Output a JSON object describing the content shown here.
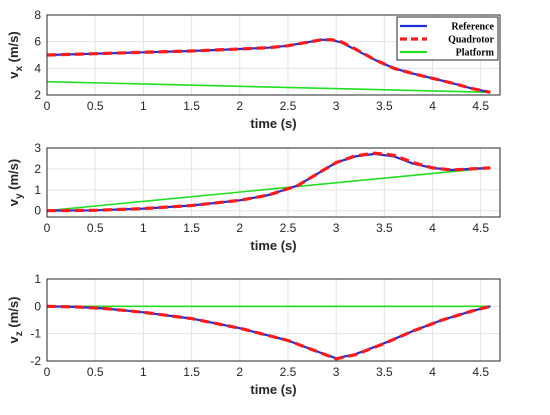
{
  "chart_data": [
    {
      "type": "line",
      "ylabel_main": "v",
      "ylabel_sub": "x",
      "ylabel_unit": "(m/s)",
      "xlabel": "time (s)",
      "xlim": [
        0,
        4.7
      ],
      "ylim": [
        2,
        8
      ],
      "xticks": [
        "0",
        "0.5",
        "1",
        "1.5",
        "2",
        "2.5",
        "3",
        "3.5",
        "4",
        "4.5"
      ],
      "yticks": [
        "2",
        "4",
        "6",
        "8"
      ],
      "grid": true,
      "legend_position": "top-right",
      "series": [
        {
          "name": "Reference",
          "color": "#1f2fd6",
          "style": "solid",
          "x": [
            0,
            0.5,
            1,
            1.5,
            2,
            2.3,
            2.5,
            2.7,
            2.85,
            2.95,
            3.05,
            3.2,
            3.4,
            3.6,
            3.8,
            4.0,
            4.2,
            4.4,
            4.6
          ],
          "y": [
            5.0,
            5.1,
            5.2,
            5.3,
            5.45,
            5.55,
            5.7,
            5.95,
            6.15,
            6.12,
            5.95,
            5.4,
            4.65,
            4.0,
            3.6,
            3.25,
            2.9,
            2.5,
            2.2
          ]
        },
        {
          "name": "Quadrotor",
          "color": "#ff1a1a",
          "style": "dashed",
          "x": [
            0,
            0.5,
            1,
            1.5,
            2,
            2.3,
            2.5,
            2.7,
            2.85,
            2.95,
            3.05,
            3.2,
            3.4,
            3.6,
            3.8,
            4.0,
            4.2,
            4.4,
            4.6
          ],
          "y": [
            5.0,
            5.1,
            5.2,
            5.3,
            5.45,
            5.55,
            5.7,
            5.95,
            6.15,
            6.15,
            6.0,
            5.45,
            4.65,
            4.0,
            3.6,
            3.25,
            2.9,
            2.5,
            2.2
          ]
        },
        {
          "name": "Platform",
          "color": "#22dd22",
          "style": "solid",
          "x": [
            0,
            4.6
          ],
          "y": [
            3.0,
            2.2
          ]
        }
      ]
    },
    {
      "type": "line",
      "ylabel_main": "v",
      "ylabel_sub": "y",
      "ylabel_unit": "(m/s)",
      "xlabel": "time (s)",
      "xlim": [
        0,
        4.7
      ],
      "ylim": [
        -0.3,
        3
      ],
      "xticks": [
        "0",
        "0.5",
        "1",
        "1.5",
        "2",
        "2.5",
        "3",
        "3.5",
        "4",
        "4.5"
      ],
      "yticks": [
        "0",
        "1",
        "2",
        "3"
      ],
      "grid": true,
      "series": [
        {
          "name": "Reference",
          "color": "#1f2fd6",
          "style": "solid",
          "x": [
            0,
            0.5,
            1,
            1.5,
            2,
            2.3,
            2.6,
            2.8,
            3.0,
            3.2,
            3.4,
            3.6,
            3.8,
            4.0,
            4.2,
            4.4,
            4.6
          ],
          "y": [
            0,
            0.02,
            0.1,
            0.25,
            0.5,
            0.75,
            1.2,
            1.75,
            2.3,
            2.6,
            2.72,
            2.6,
            2.25,
            2.05,
            1.95,
            2.0,
            2.05
          ]
        },
        {
          "name": "Quadrotor",
          "color": "#ff1a1a",
          "style": "dashed",
          "x": [
            0,
            0.5,
            1,
            1.5,
            2,
            2.3,
            2.6,
            2.8,
            3.0,
            3.2,
            3.4,
            3.6,
            3.8,
            4.0,
            4.2,
            4.4,
            4.6
          ],
          "y": [
            0,
            0.02,
            0.1,
            0.25,
            0.5,
            0.75,
            1.2,
            1.75,
            2.3,
            2.62,
            2.75,
            2.65,
            2.3,
            2.05,
            1.95,
            2.0,
            2.05
          ]
        },
        {
          "name": "Platform",
          "color": "#22dd22",
          "style": "solid",
          "x": [
            0,
            4.6
          ],
          "y": [
            0,
            2.05
          ]
        }
      ]
    },
    {
      "type": "line",
      "ylabel_main": "v",
      "ylabel_sub": "z",
      "ylabel_unit": "(m/s)",
      "xlabel": "time (s)",
      "xlim": [
        0,
        4.7
      ],
      "ylim": [
        -2,
        1
      ],
      "xticks": [
        "0",
        "0.5",
        "1",
        "1.5",
        "2",
        "2.5",
        "3",
        "3.5",
        "4",
        "4.5"
      ],
      "yticks": [
        "-2",
        "-1",
        "0",
        "1"
      ],
      "grid": true,
      "series": [
        {
          "name": "Reference",
          "color": "#1f2fd6",
          "style": "solid",
          "x": [
            0,
            0.3,
            0.6,
            1.0,
            1.5,
            2.0,
            2.5,
            2.8,
            3.0,
            3.2,
            3.5,
            3.8,
            4.1,
            4.4,
            4.6
          ],
          "y": [
            0,
            -0.02,
            -0.08,
            -0.22,
            -0.45,
            -0.8,
            -1.25,
            -1.65,
            -1.9,
            -1.75,
            -1.35,
            -0.9,
            -0.5,
            -0.18,
            0
          ]
        },
        {
          "name": "Quadrotor",
          "color": "#ff1a1a",
          "style": "dashed",
          "x": [
            0,
            0.3,
            0.6,
            1.0,
            1.5,
            2.0,
            2.5,
            2.8,
            3.0,
            3.2,
            3.5,
            3.8,
            4.1,
            4.4,
            4.6
          ],
          "y": [
            0,
            -0.02,
            -0.08,
            -0.22,
            -0.45,
            -0.8,
            -1.25,
            -1.65,
            -1.92,
            -1.77,
            -1.36,
            -0.9,
            -0.5,
            -0.18,
            0
          ]
        },
        {
          "name": "Platform",
          "color": "#22dd22",
          "style": "solid",
          "x": [
            0,
            4.6
          ],
          "y": [
            0,
            0
          ]
        }
      ]
    }
  ]
}
